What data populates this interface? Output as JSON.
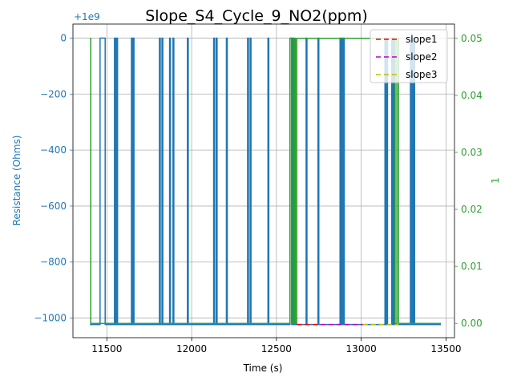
{
  "chart_data": {
    "type": "line",
    "title": "Slope_S4_Cycle_9_NO2(ppm)",
    "xlabel": "Time (s)",
    "ylabel_left": "Resistance (Ohms)",
    "ylabel_right": "1",
    "offset_label": "+1e9",
    "xlim": [
      11300,
      13550
    ],
    "ylim_left": [
      -1070,
      50
    ],
    "ylim_right": [
      -0.0025,
      0.0525
    ],
    "x_ticks": [
      11500,
      12000,
      12500,
      13000,
      13500
    ],
    "x_tick_labels": [
      "11500",
      "12000",
      "12500",
      "13000",
      "13500"
    ],
    "y_left_ticks": [
      0,
      -200,
      -400,
      -600,
      -800,
      -1000
    ],
    "y_left_tick_labels": [
      "0",
      "−200",
      "−400",
      "−600",
      "−800",
      "−1000"
    ],
    "y_right_ticks": [
      0,
      0.01,
      0.02,
      0.03,
      0.04,
      0.05
    ],
    "y_right_tick_labels": [
      "0.00",
      "0.01",
      "0.02",
      "0.03",
      "0.04",
      "0.05"
    ],
    "grid": true,
    "legend_position": "top-right",
    "colors": {
      "resistance": "#1f77b4",
      "concentration": "#2ca02c",
      "slope1": "#ff0000",
      "slope2": "#bf00bf",
      "slope3": "#bfbf00",
      "left_axis_text": "#1f77b4",
      "right_axis_text": "#2ca02c"
    },
    "series": [
      {
        "key": "resistance",
        "axis": "left",
        "x": [
          11400,
          11460,
          11460,
          11490,
          11490,
          11495,
          11495,
          11545,
          11545,
          11548,
          11548,
          11552,
          11552,
          11555,
          11555,
          11560,
          11560,
          11563,
          11563,
          11645,
          11645,
          11650,
          11650,
          11655,
          11655,
          11660,
          11660,
          11810,
          11810,
          11815,
          11815,
          11825,
          11825,
          11830,
          11830,
          11870,
          11870,
          11875,
          11875,
          11890,
          11890,
          11895,
          11895,
          11975,
          11975,
          11980,
          11980,
          12130,
          12130,
          12135,
          12135,
          12145,
          12145,
          12150,
          12150,
          12205,
          12205,
          12210,
          12210,
          12330,
          12330,
          12335,
          12335,
          12345,
          12345,
          12350,
          12350,
          12450,
          12450,
          12455,
          12455,
          12580,
          12580,
          12590,
          12590,
          12595,
          12595,
          12598,
          12598,
          12600,
          12600,
          12603,
          12603,
          12605,
          12605,
          12675,
          12675,
          12680,
          12680,
          12745,
          12745,
          12750,
          12750,
          12875,
          12875,
          12880,
          12880,
          12885,
          12885,
          12890,
          12890,
          12895,
          12895,
          12900,
          12900,
          13140,
          13140,
          13145,
          13145,
          13150,
          13150,
          13155,
          13155,
          13180,
          13180,
          13185,
          13185,
          13190,
          13190,
          13195,
          13195,
          13290,
          13290,
          13295,
          13295,
          13300,
          13300,
          13305,
          13305,
          13310,
          13310,
          13315,
          13315,
          13470
        ],
        "y": [
          -1023,
          -1023,
          0,
          0,
          -1023,
          -1023,
          -1023,
          -1023,
          0,
          0,
          -1023,
          -1023,
          0,
          0,
          -1023,
          -1023,
          0,
          0,
          -1023,
          -1023,
          0,
          0,
          -1023,
          -1023,
          0,
          0,
          -1023,
          -1023,
          0,
          0,
          -1023,
          -1023,
          0,
          0,
          -1023,
          -1023,
          0,
          0,
          -1023,
          -1023,
          0,
          0,
          -1023,
          -1023,
          0,
          0,
          -1023,
          -1023,
          0,
          0,
          -1023,
          -1023,
          0,
          0,
          -1023,
          -1023,
          0,
          0,
          -1023,
          -1023,
          0,
          0,
          -1023,
          -1023,
          0,
          0,
          -1023,
          -1023,
          0,
          0,
          -1023,
          -1023,
          0,
          0,
          -1023,
          -1023,
          0,
          0,
          -1023,
          -1023,
          0,
          0,
          -1023,
          -1023,
          -1023,
          -1023,
          0,
          0,
          -1023,
          -1023,
          0,
          0,
          -1023,
          -1023,
          0,
          0,
          -1023,
          -1023,
          0,
          0,
          -1023,
          -1023,
          0,
          0,
          -1023,
          -1023,
          0,
          0,
          -1023,
          -1023,
          0,
          0,
          -1023,
          -1023,
          0,
          0,
          -1023,
          -1023,
          0,
          0,
          -1023,
          -1023,
          0,
          0,
          -1023,
          -1023,
          0,
          0,
          -1023,
          -1023,
          0,
          0,
          -1023,
          -1023
        ]
      },
      {
        "key": "concentration",
        "axis": "right",
        "x": [
          11400,
          11400,
          11405,
          11405,
          12580,
          12580,
          12590,
          12590,
          12600,
          12600,
          12605,
          12605,
          12608,
          12608,
          12612,
          12612,
          12620,
          12620,
          13200,
          13200,
          13210,
          13210,
          13220,
          13220,
          13225,
          13225,
          13470
        ],
        "y": [
          0.05,
          0.05,
          0.05,
          0.0,
          0.0,
          0.05,
          0.05,
          0.0,
          0.0,
          0.05,
          0.05,
          0.0,
          0.0,
          0.05,
          0.05,
          0.0,
          0.0,
          0.05,
          0.05,
          0.0,
          0.0,
          0.05,
          0.05,
          0.0,
          0.0,
          0.0,
          0.0
        ]
      },
      {
        "key": "slope1",
        "name": "slope1",
        "axis": "left",
        "dashed": true,
        "x": [
          12620,
          12760
        ],
        "y": [
          -1023,
          -1023
        ]
      },
      {
        "key": "slope2",
        "name": "slope2",
        "axis": "left",
        "dashed": true,
        "x": [
          12760,
          13010
        ],
        "y": [
          -1023,
          -1023
        ]
      },
      {
        "key": "slope3",
        "name": "slope3",
        "axis": "left",
        "dashed": true,
        "x": [
          13010,
          13220
        ],
        "y": [
          -1023,
          -1023
        ]
      }
    ],
    "legend": [
      {
        "key": "slope1",
        "label": "slope1"
      },
      {
        "key": "slope2",
        "label": "slope2"
      },
      {
        "key": "slope3",
        "label": "slope3"
      }
    ]
  }
}
